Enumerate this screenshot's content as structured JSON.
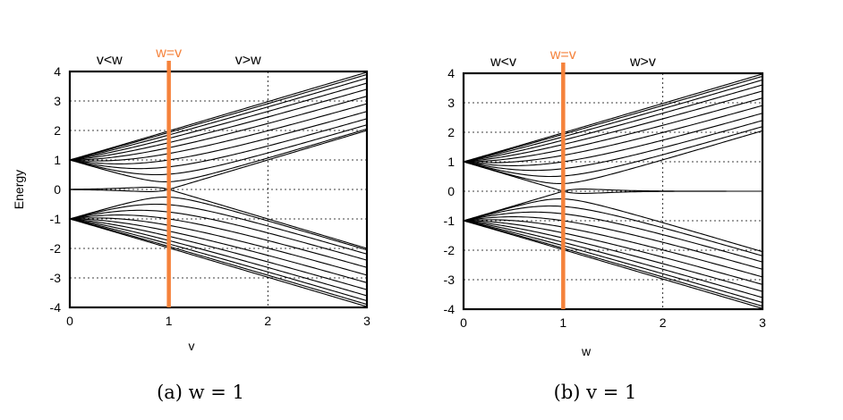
{
  "chart_data": [
    {
      "type": "line",
      "title": "",
      "caption": "(a) w = 1",
      "xlabel": "v",
      "ylabel": "Energy",
      "xlim": [
        0,
        3
      ],
      "ylim": [
        -4,
        4
      ],
      "xticks": [
        "0",
        "1",
        "2",
        "3"
      ],
      "yticks": [
        "4",
        "3",
        "2",
        "1",
        "0",
        "-1",
        "-2",
        "-3",
        "-4"
      ],
      "grid": true,
      "marker_line": {
        "x": 1,
        "label": "w=v",
        "color": "#f5823b"
      },
      "region_labels": [
        {
          "text": "v<w",
          "x": 0.4
        },
        {
          "text": "v>w",
          "x": 1.8
        }
      ],
      "sweep_variable": "v",
      "fixed_hopping": 1,
      "band_phases": [
        0.2618,
        0.5236,
        0.7854,
        1.0472,
        1.309,
        1.5708,
        1.8326,
        2.0944,
        2.3562,
        2.618,
        2.8798
      ],
      "edge_state_decay": 20,
      "curve_color": "#000000"
    },
    {
      "type": "line",
      "title": "",
      "caption": "(b) v = 1",
      "xlabel": "w",
      "ylabel": "",
      "xlim": [
        0,
        3
      ],
      "ylim": [
        -4,
        4
      ],
      "xticks": [
        "0",
        "1",
        "2",
        "3"
      ],
      "yticks": [
        "4",
        "3",
        "2",
        "1",
        "0",
        "-1",
        "-2",
        "-3",
        "-4"
      ],
      "grid": true,
      "marker_line": {
        "x": 1,
        "label": "w=v",
        "color": "#f5823b"
      },
      "region_labels": [
        {
          "text": "w<v",
          "x": 0.4
        },
        {
          "text": "w>v",
          "x": 1.8
        }
      ],
      "sweep_variable": "w",
      "fixed_hopping": 1,
      "band_phases": [
        0.2618,
        0.5236,
        0.7854,
        1.0472,
        1.309,
        1.5708,
        1.8326,
        2.0944,
        2.3562,
        2.618,
        2.8798
      ],
      "edge_state_decay": 20,
      "curve_color": "#000000"
    }
  ]
}
